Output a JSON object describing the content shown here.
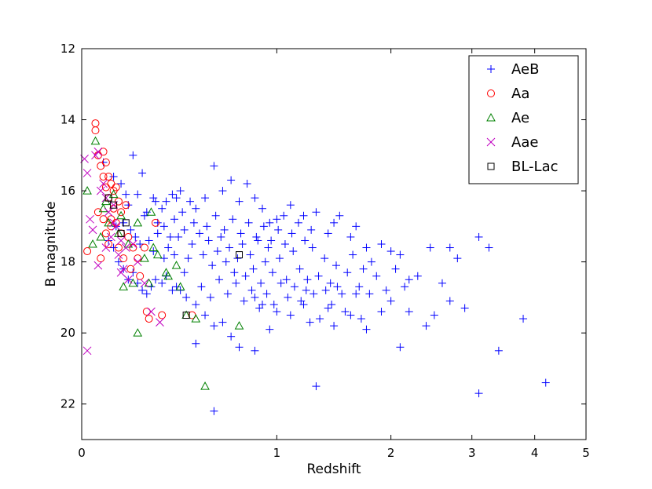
{
  "chart_data": {
    "type": "scatter",
    "title": "",
    "xlabel": "Redshift",
    "ylabel": "B magnitude",
    "x_scale": "log1p",
    "xlim": [
      0,
      5
    ],
    "ylim": [
      23,
      12
    ],
    "y_inverted": true,
    "x_ticks": [
      0,
      1,
      2,
      3,
      4,
      5
    ],
    "y_ticks": [
      12,
      14,
      16,
      18,
      20,
      22
    ],
    "legend_position": "top-right",
    "grid": false,
    "series": [
      {
        "name": "AeB",
        "marker": "plus",
        "color": "#0000ff",
        "points": [
          [
            0.08,
            15.2
          ],
          [
            0.12,
            15.6
          ],
          [
            0.15,
            15.8
          ],
          [
            0.17,
            16.1
          ],
          [
            0.2,
            15.0
          ],
          [
            0.24,
            15.5
          ],
          [
            0.22,
            16.1
          ],
          [
            0.18,
            16.4
          ],
          [
            0.25,
            16.7
          ],
          [
            0.3,
            16.3
          ],
          [
            0.33,
            16.5
          ],
          [
            0.35,
            16.3
          ],
          [
            0.38,
            16.1
          ],
          [
            0.4,
            16.2
          ],
          [
            0.42,
            16.0
          ],
          [
            0.47,
            16.3
          ],
          [
            0.5,
            16.5
          ],
          [
            0.55,
            16.2
          ],
          [
            0.6,
            15.3
          ],
          [
            0.65,
            16.0
          ],
          [
            0.7,
            15.7
          ],
          [
            0.75,
            16.3
          ],
          [
            0.8,
            15.8
          ],
          [
            0.85,
            16.2
          ],
          [
            0.9,
            16.5
          ],
          [
            0.95,
            16.9
          ],
          [
            1.0,
            16.8
          ],
          [
            1.05,
            16.7
          ],
          [
            1.1,
            16.4
          ],
          [
            1.2,
            16.7
          ],
          [
            1.3,
            16.6
          ],
          [
            1.4,
            17.2
          ],
          [
            1.45,
            16.9
          ],
          [
            1.5,
            16.7
          ],
          [
            1.6,
            17.3
          ],
          [
            1.65,
            17.0
          ],
          [
            1.75,
            17.6
          ],
          [
            1.8,
            18.0
          ],
          [
            1.9,
            17.5
          ],
          [
            2.0,
            17.7
          ],
          [
            2.1,
            17.8
          ],
          [
            2.2,
            18.5
          ],
          [
            2.3,
            18.4
          ],
          [
            2.45,
            17.6
          ],
          [
            2.6,
            18.6
          ],
          [
            2.7,
            17.6
          ],
          [
            2.8,
            17.9
          ],
          [
            3.1,
            17.3
          ],
          [
            3.25,
            17.6
          ],
          [
            3.8,
            19.6
          ],
          [
            4.2,
            21.4
          ],
          [
            3.4,
            20.5
          ],
          [
            3.1,
            21.7
          ],
          [
            2.9,
            19.3
          ],
          [
            2.7,
            19.1
          ],
          [
            2.5,
            19.5
          ],
          [
            2.4,
            19.8
          ],
          [
            2.2,
            19.4
          ],
          [
            2.1,
            20.4
          ],
          [
            2.0,
            19.1
          ],
          [
            1.9,
            19.4
          ],
          [
            1.75,
            19.9
          ],
          [
            1.6,
            19.5
          ],
          [
            1.4,
            19.3
          ],
          [
            1.3,
            21.5
          ],
          [
            1.45,
            19.8
          ],
          [
            1.25,
            19.7
          ],
          [
            1.2,
            19.2
          ],
          [
            1.1,
            19.5
          ],
          [
            1.0,
            19.4
          ],
          [
            0.95,
            19.9
          ],
          [
            0.9,
            19.2
          ],
          [
            0.85,
            19.0
          ],
          [
            0.75,
            20.4
          ],
          [
            0.7,
            20.1
          ],
          [
            0.65,
            19.7
          ],
          [
            0.6,
            19.8
          ],
          [
            0.55,
            19.5
          ],
          [
            0.5,
            19.2
          ],
          [
            0.45,
            19.0
          ],
          [
            0.42,
            18.8
          ],
          [
            0.4,
            18.7
          ],
          [
            0.38,
            18.8
          ],
          [
            0.35,
            18.4
          ],
          [
            0.33,
            18.6
          ],
          [
            0.3,
            18.5
          ],
          [
            0.28,
            18.7
          ],
          [
            0.26,
            18.9
          ],
          [
            0.24,
            18.8
          ],
          [
            0.22,
            18.6
          ],
          [
            0.2,
            18.3
          ],
          [
            0.18,
            18.5
          ],
          [
            0.16,
            18.2
          ],
          [
            0.14,
            18.0
          ],
          [
            0.12,
            17.6
          ],
          [
            0.1,
            17.4
          ],
          [
            0.13,
            17.0
          ],
          [
            0.16,
            16.9
          ],
          [
            0.19,
            17.1
          ],
          [
            0.21,
            17.3
          ],
          [
            0.23,
            17.5
          ],
          [
            0.27,
            17.4
          ],
          [
            0.29,
            17.7
          ],
          [
            0.31,
            17.2
          ],
          [
            0.34,
            17.0
          ],
          [
            0.36,
            17.6
          ],
          [
            0.39,
            17.8
          ],
          [
            0.41,
            17.3
          ],
          [
            0.44,
            17.1
          ],
          [
            0.46,
            17.9
          ],
          [
            0.48,
            17.5
          ],
          [
            0.52,
            17.2
          ],
          [
            0.54,
            17.8
          ],
          [
            0.57,
            17.4
          ],
          [
            0.59,
            18.1
          ],
          [
            0.62,
            17.7
          ],
          [
            0.64,
            17.3
          ],
          [
            0.67,
            18.0
          ],
          [
            0.69,
            17.6
          ],
          [
            0.72,
            18.3
          ],
          [
            0.74,
            17.9
          ],
          [
            0.77,
            17.5
          ],
          [
            0.79,
            18.4
          ],
          [
            0.82,
            17.8
          ],
          [
            0.84,
            18.2
          ],
          [
            0.87,
            17.4
          ],
          [
            0.89,
            18.6
          ],
          [
            0.92,
            18.0
          ],
          [
            0.94,
            17.6
          ],
          [
            0.97,
            18.3
          ],
          [
            1.02,
            17.9
          ],
          [
            1.07,
            18.5
          ],
          [
            1.12,
            17.7
          ],
          [
            1.17,
            18.2
          ],
          [
            1.22,
            18.8
          ],
          [
            1.27,
            17.6
          ],
          [
            1.32,
            18.4
          ],
          [
            1.37,
            17.9
          ],
          [
            1.42,
            18.6
          ],
          [
            1.47,
            18.1
          ],
          [
            1.52,
            18.9
          ],
          [
            1.57,
            18.3
          ],
          [
            1.62,
            17.8
          ],
          [
            1.68,
            18.7
          ],
          [
            1.72,
            18.2
          ],
          [
            1.78,
            18.9
          ],
          [
            1.85,
            18.4
          ],
          [
            1.95,
            18.8
          ],
          [
            2.05,
            18.2
          ],
          [
            2.15,
            18.7
          ],
          [
            0.26,
            16.6
          ],
          [
            0.31,
            16.9
          ],
          [
            0.37,
            17.3
          ],
          [
            0.43,
            16.6
          ],
          [
            0.49,
            16.9
          ],
          [
            0.56,
            17.0
          ],
          [
            0.61,
            16.7
          ],
          [
            0.66,
            17.1
          ],
          [
            0.71,
            16.8
          ],
          [
            0.76,
            17.2
          ],
          [
            0.81,
            16.9
          ],
          [
            0.86,
            17.3
          ],
          [
            0.91,
            17.0
          ],
          [
            0.96,
            17.4
          ],
          [
            1.01,
            17.1
          ],
          [
            1.06,
            17.5
          ],
          [
            1.11,
            17.2
          ],
          [
            1.16,
            16.9
          ],
          [
            1.21,
            17.4
          ],
          [
            1.26,
            17.1
          ],
          [
            0.53,
            18.7
          ],
          [
            0.58,
            19.0
          ],
          [
            0.63,
            18.5
          ],
          [
            0.68,
            18.9
          ],
          [
            0.73,
            18.6
          ],
          [
            0.78,
            19.1
          ],
          [
            0.83,
            18.8
          ],
          [
            0.88,
            19.3
          ],
          [
            0.93,
            18.9
          ],
          [
            0.98,
            19.2
          ],
          [
            1.03,
            18.6
          ],
          [
            1.08,
            19.0
          ],
          [
            1.13,
            18.7
          ],
          [
            1.18,
            19.1
          ],
          [
            1.23,
            18.5
          ],
          [
            1.28,
            18.9
          ],
          [
            1.33,
            19.6
          ],
          [
            1.38,
            18.8
          ],
          [
            1.43,
            19.2
          ],
          [
            1.48,
            18.7
          ],
          [
            1.55,
            19.4
          ],
          [
            1.65,
            18.9
          ],
          [
            1.7,
            19.6
          ],
          [
            0.5,
            20.3
          ],
          [
            0.6,
            22.2
          ],
          [
            0.85,
            20.5
          ],
          [
            0.34,
            17.9
          ],
          [
            0.44,
            18.3
          ],
          [
            0.39,
            16.8
          ],
          [
            0.29,
            16.2
          ]
        ]
      },
      {
        "name": "Aa",
        "marker": "circle",
        "color": "#ff0000",
        "points": [
          [
            0.05,
            14.1
          ],
          [
            0.05,
            14.3
          ],
          [
            0.06,
            15.0
          ],
          [
            0.07,
            15.3
          ],
          [
            0.08,
            15.6
          ],
          [
            0.09,
            15.9
          ],
          [
            0.1,
            16.2
          ],
          [
            0.11,
            15.8
          ],
          [
            0.12,
            16.5
          ],
          [
            0.08,
            16.8
          ],
          [
            0.09,
            17.2
          ],
          [
            0.1,
            17.5
          ],
          [
            0.13,
            16.9
          ],
          [
            0.14,
            17.6
          ],
          [
            0.15,
            17.2
          ],
          [
            0.16,
            17.9
          ],
          [
            0.17,
            16.4
          ],
          [
            0.18,
            17.3
          ],
          [
            0.19,
            18.2
          ],
          [
            0.2,
            17.6
          ],
          [
            0.22,
            17.9
          ],
          [
            0.23,
            18.4
          ],
          [
            0.25,
            17.6
          ],
          [
            0.26,
            19.4
          ],
          [
            0.27,
            19.6
          ],
          [
            0.3,
            16.9
          ],
          [
            0.33,
            19.5
          ],
          [
            0.48,
            19.5
          ],
          [
            0.07,
            17.9
          ],
          [
            0.02,
            17.7
          ],
          [
            0.06,
            16.6
          ],
          [
            0.11,
            17.0
          ],
          [
            0.12,
            16.0
          ],
          [
            0.13,
            15.9
          ],
          [
            0.14,
            16.3
          ],
          [
            0.1,
            15.6
          ],
          [
            0.09,
            15.2
          ],
          [
            0.08,
            14.9
          ],
          [
            0.11,
            16.8
          ],
          [
            0.15,
            16.6
          ]
        ]
      },
      {
        "name": "Ae",
        "marker": "triangle",
        "color": "#008000",
        "points": [
          [
            0.02,
            16.0
          ],
          [
            0.05,
            14.6
          ],
          [
            0.07,
            17.3
          ],
          [
            0.08,
            16.5
          ],
          [
            0.1,
            16.9
          ],
          [
            0.12,
            16.1
          ],
          [
            0.14,
            17.2
          ],
          [
            0.15,
            16.7
          ],
          [
            0.16,
            18.7
          ],
          [
            0.18,
            17.5
          ],
          [
            0.2,
            18.6
          ],
          [
            0.22,
            16.9
          ],
          [
            0.25,
            17.9
          ],
          [
            0.27,
            18.6
          ],
          [
            0.28,
            16.6
          ],
          [
            0.29,
            17.6
          ],
          [
            0.31,
            17.8
          ],
          [
            0.35,
            18.3
          ],
          [
            0.36,
            18.4
          ],
          [
            0.4,
            18.1
          ],
          [
            0.42,
            18.7
          ],
          [
            0.45,
            19.5
          ],
          [
            0.5,
            19.6
          ],
          [
            0.55,
            21.5
          ],
          [
            0.22,
            20.0
          ],
          [
            0.75,
            19.8
          ],
          [
            0.04,
            17.5
          ],
          [
            0.09,
            16.3
          ]
        ]
      },
      {
        "name": "Aae",
        "marker": "cross",
        "color": "#c000c0",
        "points": [
          [
            0.01,
            15.1
          ],
          [
            0.02,
            15.5
          ],
          [
            0.03,
            16.8
          ],
          [
            0.04,
            17.1
          ],
          [
            0.05,
            15.0
          ],
          [
            0.06,
            14.9
          ],
          [
            0.07,
            16.0
          ],
          [
            0.08,
            15.8
          ],
          [
            0.09,
            16.2
          ],
          [
            0.1,
            16.6
          ],
          [
            0.11,
            17.3
          ],
          [
            0.12,
            16.9
          ],
          [
            0.13,
            17.0
          ],
          [
            0.14,
            17.8
          ],
          [
            0.15,
            17.4
          ],
          [
            0.16,
            18.2
          ],
          [
            0.17,
            17.6
          ],
          [
            0.18,
            18.5
          ],
          [
            0.2,
            17.5
          ],
          [
            0.22,
            18.0
          ],
          [
            0.25,
            18.6
          ],
          [
            0.28,
            19.4
          ],
          [
            0.32,
            19.7
          ],
          [
            0.02,
            20.5
          ],
          [
            0.06,
            18.1
          ],
          [
            0.12,
            16.4
          ],
          [
            0.09,
            17.6
          ],
          [
            0.15,
            18.3
          ]
        ]
      },
      {
        "name": "BL-Lac",
        "marker": "square",
        "color": "#000000",
        "points": [
          [
            0.1,
            16.2
          ],
          [
            0.12,
            16.4
          ],
          [
            0.15,
            17.2
          ],
          [
            0.17,
            16.9
          ],
          [
            0.45,
            19.5
          ],
          [
            0.75,
            17.8
          ]
        ]
      }
    ]
  }
}
